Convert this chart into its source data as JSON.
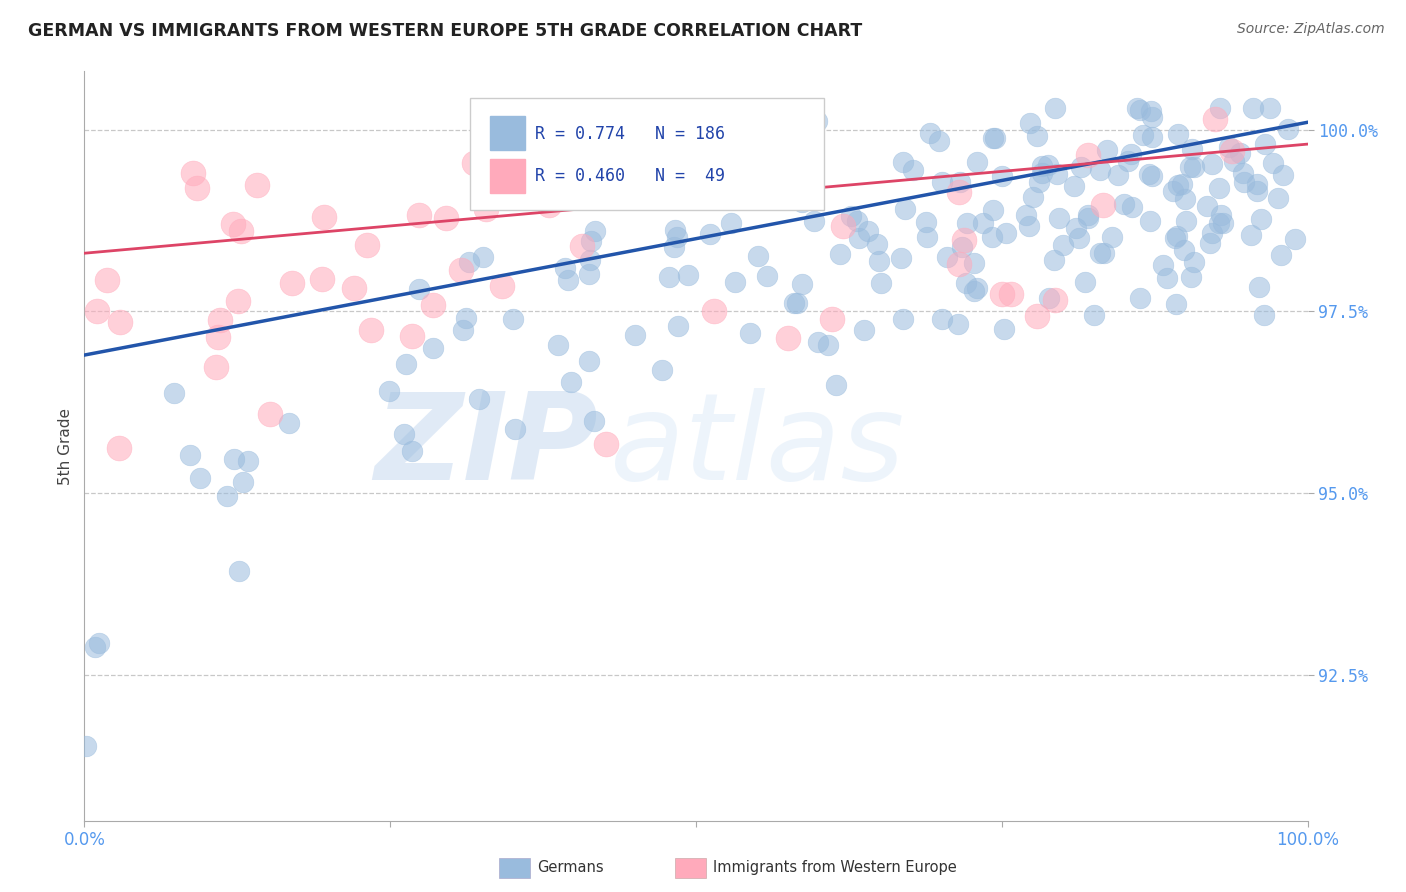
{
  "title": "GERMAN VS IMMIGRANTS FROM WESTERN EUROPE 5TH GRADE CORRELATION CHART",
  "source": "Source: ZipAtlas.com",
  "ylabel": "5th Grade",
  "watermark_zip": "ZIP",
  "watermark_atlas": "atlas",
  "blue_series": {
    "label": "Germans",
    "R": 0.774,
    "N": 186,
    "color": "#99bbdd",
    "edge_color": "#99bbdd",
    "line_color": "#2255aa"
  },
  "pink_series": {
    "label": "Immigrants from Western Europe",
    "R": 0.46,
    "N": 49,
    "color": "#ffaabb",
    "edge_color": "#ffaabb",
    "line_color": "#dd4466"
  },
  "xlim": [
    0.0,
    1.0
  ],
  "ylim": [
    0.905,
    1.008
  ],
  "yticks": [
    0.925,
    0.95,
    0.975,
    1.0
  ],
  "ytick_labels": [
    "92.5%",
    "95.0%",
    "97.5%",
    "100.0%"
  ],
  "xtick_labels": [
    "0.0%",
    "100.0%"
  ],
  "background_color": "#ffffff",
  "grid_color": "#bbbbbb",
  "title_color": "#222222",
  "source_color": "#666666",
  "tick_color": "#5599ee"
}
